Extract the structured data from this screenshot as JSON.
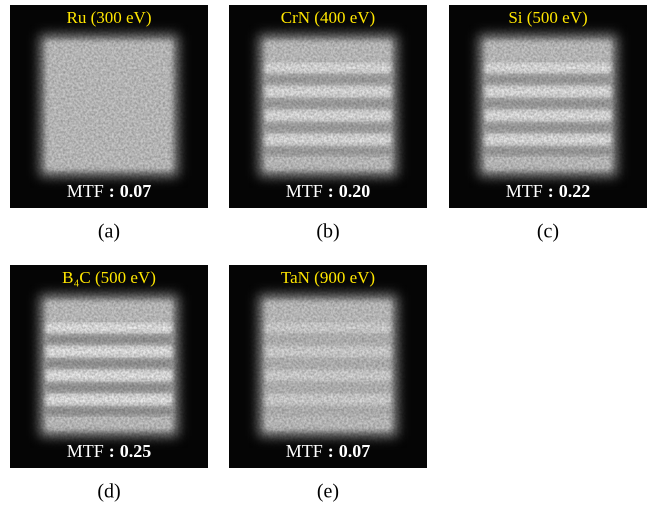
{
  "separator": ":",
  "panels": [
    {
      "title": "Ru (300 eV)",
      "mtf": {
        "label": "MTF",
        "value": "0.07"
      },
      "caption": "(a)"
    },
    {
      "title": "CrN (400 eV)",
      "mtf": {
        "label": "MTF",
        "value": "0.20"
      },
      "caption": "(b)"
    },
    {
      "title": "Si (500 eV)",
      "mtf": {
        "label": "MTF",
        "value": "0.22"
      },
      "caption": "(c)"
    },
    {
      "title": "B₄C (500 eV)",
      "mtf": {
        "label": "MTF",
        "value": "0.25"
      },
      "caption": "(d)"
    },
    {
      "title": "TaN (900 eV)",
      "mtf": {
        "label": "MTF",
        "value": "0.07"
      },
      "caption": "(e)"
    }
  ]
}
